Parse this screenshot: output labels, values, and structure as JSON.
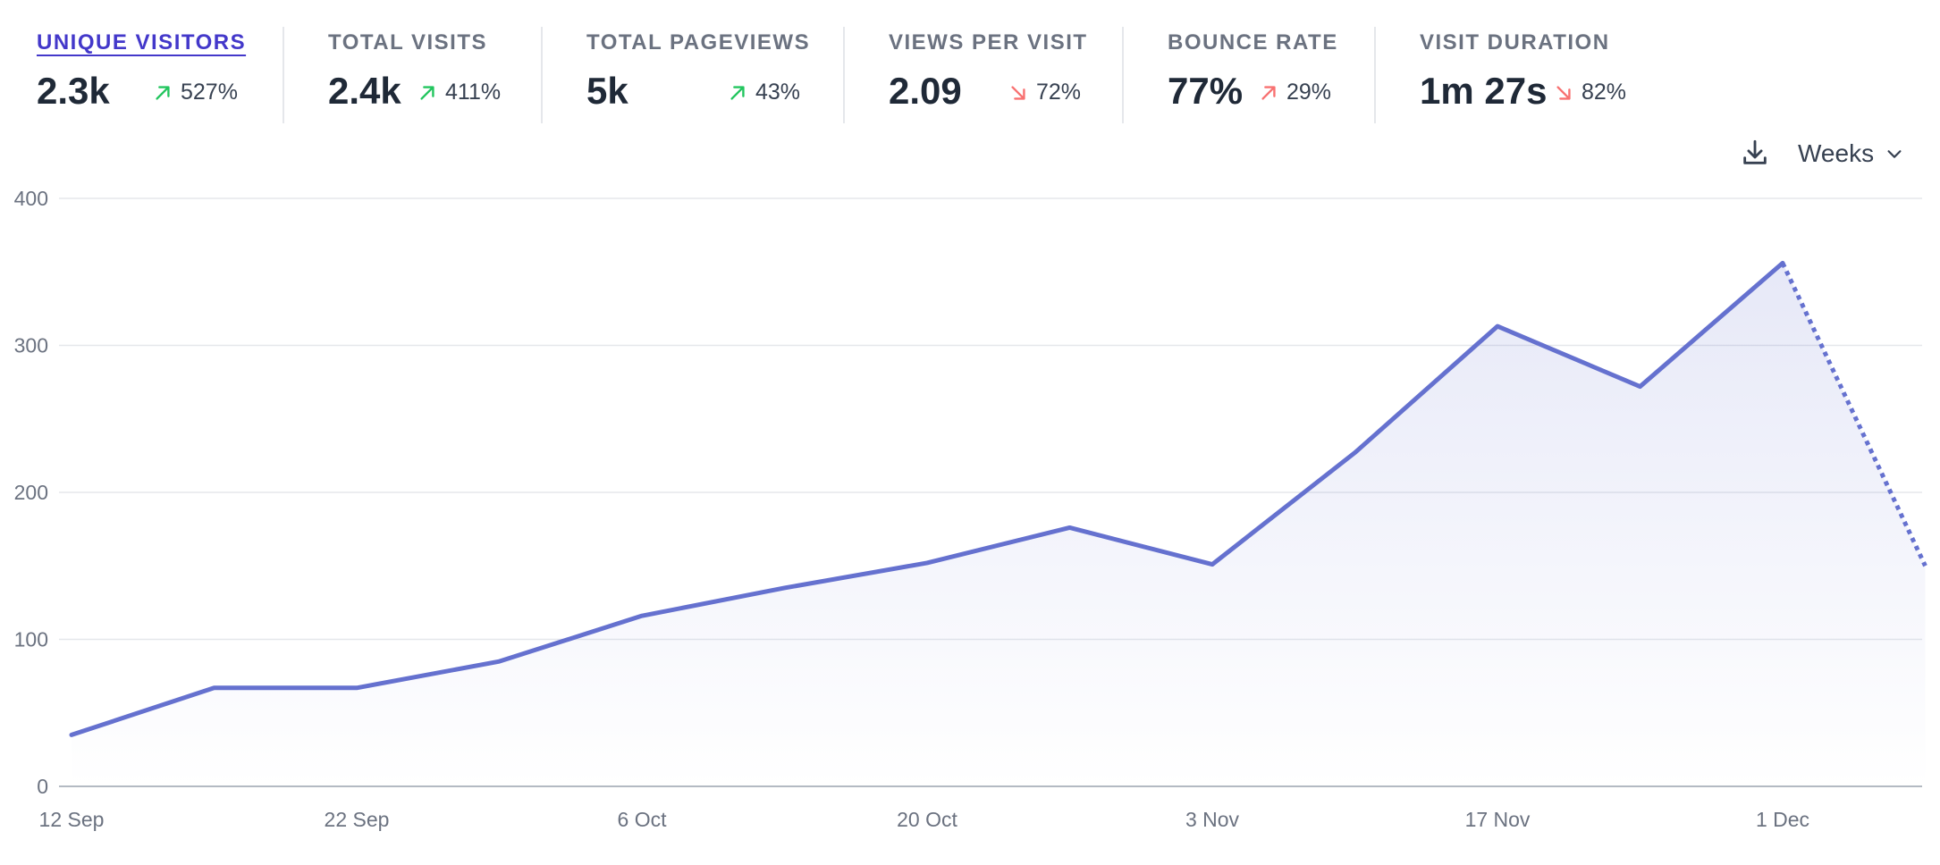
{
  "metrics": [
    {
      "label": "UNIQUE VISITORS",
      "value": "2.3k",
      "change": "527%",
      "direction": "up",
      "active": true
    },
    {
      "label": "TOTAL VISITS",
      "value": "2.4k",
      "change": "411%",
      "direction": "up",
      "active": false
    },
    {
      "label": "TOTAL PAGEVIEWS",
      "value": "5k",
      "change": "43%",
      "direction": "up",
      "active": false
    },
    {
      "label": "VIEWS PER VISIT",
      "value": "2.09",
      "change": "72%",
      "direction": "down",
      "active": false
    },
    {
      "label": "BOUNCE RATE",
      "value": "77%",
      "change": "29%",
      "direction": "up-bad",
      "active": false
    },
    {
      "label": "VISIT DURATION",
      "value": "1m 27s",
      "change": "82%",
      "direction": "down",
      "active": false
    }
  ],
  "controls": {
    "download_icon": "download-icon",
    "interval_label": "Weeks",
    "interval_icon": "chevron-down-icon"
  },
  "colors": {
    "line": "#6571cf",
    "up": "#22c55e",
    "down": "#f87171",
    "active_label": "#4338ca"
  },
  "chart_data": {
    "type": "line",
    "title": "",
    "xlabel": "",
    "ylabel": "",
    "ylim": [
      0,
      400
    ],
    "yticks": [
      0,
      100,
      200,
      300,
      400
    ],
    "x_tick_labels": [
      "12 Sep",
      "22 Sep",
      "6 Oct",
      "20 Oct",
      "3 Nov",
      "17 Nov",
      "1 Dec"
    ],
    "grid": true,
    "legend": "none",
    "series": [
      {
        "values": [
          35,
          67,
          67,
          85,
          116,
          135,
          152,
          176,
          151,
          227,
          313,
          272,
          356,
          150
        ],
        "incomplete_from_index": 12
      }
    ]
  }
}
